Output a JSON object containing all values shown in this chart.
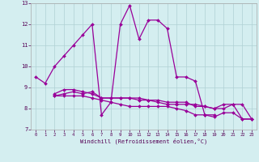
{
  "xlabel": "Windchill (Refroidissement éolien,°C)",
  "background_color": "#d4eef0",
  "grid_color": "#b0d0d4",
  "line_color": "#990099",
  "x": [
    0,
    1,
    2,
    3,
    4,
    5,
    6,
    7,
    8,
    9,
    10,
    11,
    12,
    13,
    14,
    15,
    16,
    17,
    18,
    19,
    20,
    21,
    22,
    23
  ],
  "main_line": [
    9.5,
    9.2,
    10.0,
    10.5,
    11.0,
    11.5,
    12.0,
    7.7,
    8.3,
    12.0,
    12.9,
    11.3,
    12.2,
    12.2,
    11.8,
    9.5,
    9.5,
    9.3,
    7.7,
    7.7,
    null,
    null,
    null,
    null
  ],
  "line2": [
    null,
    null,
    8.7,
    8.9,
    8.9,
    8.8,
    8.7,
    8.5,
    8.5,
    8.5,
    8.5,
    8.4,
    8.4,
    8.4,
    8.3,
    8.3,
    8.3,
    8.1,
    8.1,
    8.0,
    8.2,
    8.2,
    7.5,
    7.5
  ],
  "line3": [
    null,
    null,
    8.6,
    8.6,
    8.6,
    8.6,
    8.5,
    8.4,
    8.3,
    8.2,
    8.1,
    8.1,
    8.1,
    8.1,
    8.1,
    8.0,
    7.9,
    7.7,
    7.7,
    7.6,
    7.8,
    7.8,
    7.5,
    7.5
  ],
  "line4": [
    null,
    null,
    8.6,
    8.7,
    8.8,
    8.7,
    8.8,
    8.5,
    8.5,
    8.5,
    8.5,
    8.5,
    8.4,
    8.3,
    8.2,
    8.2,
    8.2,
    8.2,
    8.1,
    8.0,
    8.0,
    8.2,
    8.2,
    7.5
  ],
  "ylim": [
    7,
    13
  ],
  "yticks": [
    7,
    8,
    9,
    10,
    11,
    12,
    13
  ],
  "xlim": [
    -0.5,
    23.5
  ]
}
